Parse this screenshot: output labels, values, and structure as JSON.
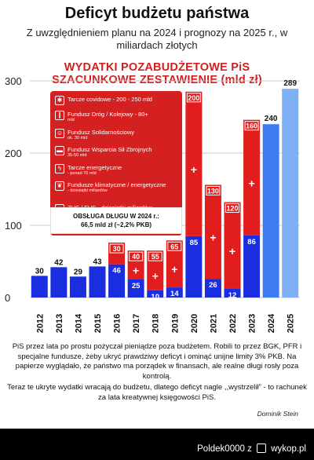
{
  "header": {
    "title": "Deficyt budżetu państwa",
    "subtitle": "Z uwzględnieniem planu na 2024 i prognozy na 2025 r., w miliardach złotych",
    "red_title_1": "WYDATKI POZABUDŻETOWE PiS",
    "red_title_2": "SZACUNKOWE ZESTAWIENIE (mld zł)"
  },
  "legend": {
    "items": [
      {
        "label": "Tarcze covidowe - 200 - 250 mld",
        "sub": "",
        "icon": "virus-icon"
      },
      {
        "label": "Fundusz Dróg / Kolejowy - 80+",
        "sub": "mld",
        "icon": "road-icon"
      },
      {
        "label": "Fundusz Solidarnościowy",
        "sub": "ok. 30 mld",
        "icon": "people-icon"
      },
      {
        "label": "Fundusz Wsparcia Sił Zbrojnych",
        "sub": "35-50 mld",
        "icon": "tank-icon"
      },
      {
        "label": "Tarcze energetyczne",
        "sub": "- ponad 70 mld",
        "icon": "lightning-icon"
      },
      {
        "label": "Fundusze klimatyczne / energetyczne",
        "sub": "- dziesiątki miliardów",
        "icon": "leaf-icon"
      },
      {
        "label": "ZUS / FUS - dziesiątki miliardów",
        "sub": "",
        "icon": "building-icon"
      }
    ],
    "debt_line_1": "OBSŁUGA DŁUGU W 2024 r.:",
    "debt_line_2": "66,5 mld zł (~2,2% PKB)"
  },
  "chart_data": {
    "type": "bar",
    "categories": [
      "2012",
      "2013",
      "2014",
      "2015",
      "2016",
      "2017",
      "2018",
      "2019",
      "2020",
      "2021",
      "2022",
      "2023",
      "2024",
      "2025"
    ],
    "series": [
      {
        "values": [
          30,
          42,
          29,
          43,
          46,
          25,
          10,
          14,
          85,
          26,
          12,
          86,
          240,
          289
        ]
      },
      {
        "values": [
          0,
          0,
          0,
          0,
          30,
          40,
          55,
          65,
          200,
          130,
          120,
          160,
          0,
          0
        ]
      }
    ],
    "value_labels_blue": [
      "30",
      "42",
      "29",
      "43",
      "46",
      "25",
      "10",
      "14",
      "85",
      "26",
      "12",
      "86",
      "240",
      "289"
    ],
    "value_labels_red": [
      "",
      "",
      "",
      "",
      "30",
      "40",
      "55",
      "65",
      "200",
      "130",
      "120",
      "160",
      "",
      ""
    ],
    "bar_style": [
      "blue",
      "blue",
      "blue",
      "blue",
      "blue",
      "blue",
      "blue",
      "blue",
      "blue",
      "blue",
      "blue",
      "blue",
      "blue-light",
      "blue-lighter"
    ],
    "yticks": [
      0,
      100,
      200,
      300
    ],
    "ylim": [
      0,
      300
    ],
    "grid": true,
    "colors": {
      "blue": "#1a2ee0",
      "red": "#e11d1d",
      "blue_light": "#3d7df0",
      "blue_lighter": "#7fb0f5",
      "grid": "#c8c8c8"
    }
  },
  "body_text": {
    "paragraph_1": "PiS przez lata po prostu pożyczał pieniądze poza budżetem. Robili to przez BGK, PFR i specjalne fundusze, żeby ukryć prawdziwy deficyt i ominąć unijne limity 3% PKB. Na papierze wyglądało, że państwo ma porządek w finansach, ale realne długi rosły poza kontrolą.",
    "paragraph_2": "Teraz te ukryte wydatki wracają do budżetu, dlatego deficyt nagle ,,wystrzelił” - to rachunek za lata kreatywnej księgowości PiS.",
    "signature": "Dominik Stein"
  },
  "credit": {
    "user": "Poldek0000",
    "separator": "z",
    "site": "wykop.pl"
  }
}
